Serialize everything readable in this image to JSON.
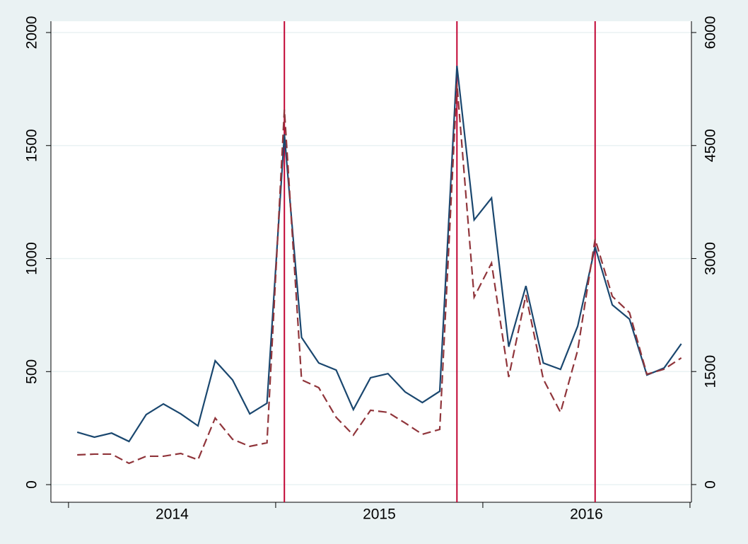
{
  "chart_data": {
    "type": "line",
    "x": [
      2014.042,
      2014.125,
      2014.208,
      2014.292,
      2014.375,
      2014.458,
      2014.542,
      2014.625,
      2014.708,
      2014.792,
      2014.875,
      2014.958,
      2015.042,
      2015.125,
      2015.208,
      2015.292,
      2015.375,
      2015.458,
      2015.542,
      2015.625,
      2015.708,
      2015.792,
      2015.875,
      2015.958,
      2016.042,
      2016.125,
      2016.208,
      2016.292,
      2016.375,
      2016.458,
      2016.542,
      2016.625,
      2016.708,
      2016.792,
      2016.875,
      2016.958
    ],
    "series": [
      {
        "color": "#1a476f",
        "dash": "solid",
        "axis": "y",
        "values": [
          232,
          210,
          228,
          191,
          310,
          357,
          313,
          260,
          548,
          463,
          313,
          360,
          1550,
          651,
          538,
          507,
          332,
          473,
          491,
          410,
          363,
          413,
          1853,
          1171,
          1268,
          610,
          879,
          538,
          510,
          701,
          1052,
          795,
          732,
          485,
          516,
          623
        ]
      },
      {
        "color": "#90353b",
        "dash": "dashed",
        "axis": "y2",
        "values": [
          394,
          404,
          404,
          282,
          376,
          376,
          413,
          329,
          883,
          601,
          507,
          554,
          4977,
          1390,
          1286,
          892,
          657,
          986,
          958,
          817,
          667,
          732,
          5324,
          2488,
          2939,
          1427,
          2516,
          1399,
          958,
          1784,
          3258,
          2498,
          2282,
          1465,
          1531,
          1681
        ]
      }
    ],
    "xlim": [
      2013.915,
      2017.007
    ],
    "xticks": [
      2014,
      2015,
      2016,
      2017
    ],
    "xlabels": [
      {
        "value": 2014.5,
        "label": "2014"
      },
      {
        "value": 2015.5,
        "label": "2015"
      },
      {
        "value": 2016.5,
        "label": "2016"
      }
    ],
    "ylim": [
      -78,
      2050
    ],
    "yticks": [
      0,
      500,
      1000,
      1500,
      2000
    ],
    "y2lim": [
      -235,
      6150
    ],
    "y2ticks": [
      0,
      1500,
      3000,
      4500,
      6000
    ],
    "vlines": [
      2015.042,
      2015.875,
      2016.542
    ],
    "vline_color": "#c10534",
    "grid": true
  }
}
